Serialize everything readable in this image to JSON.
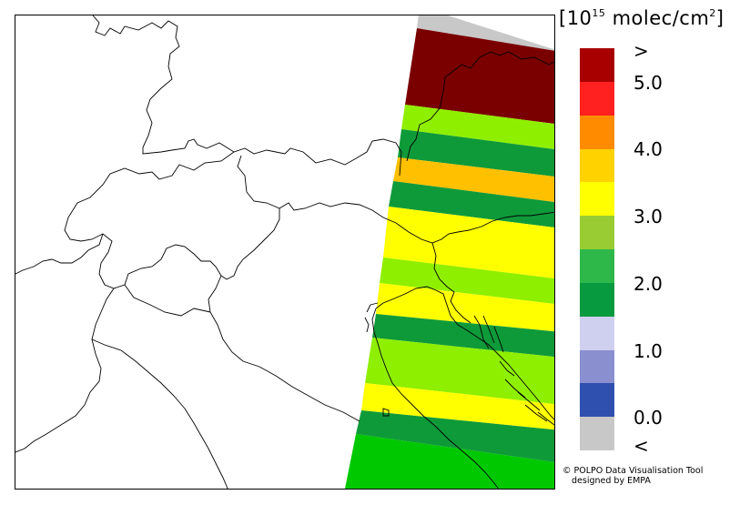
{
  "legend": {
    "title_base": "[10",
    "title_exp": "15",
    "title_units": " molec/cm",
    "title_sq": "2",
    "title_close": "]",
    "ticks": [
      ">",
      "5.0",
      "4.0",
      "3.0",
      "2.0",
      "1.0",
      "0.0",
      "<"
    ],
    "colors": [
      "#a80000",
      "#ff2020",
      "#ff8c00",
      "#ffd200",
      "#ffff00",
      "#99cc33",
      "#2fb84a",
      "#079a3f",
      "#cfcfef",
      "#8a8fd0",
      "#3050b0",
      "#c8c8c8"
    ]
  },
  "map": {
    "swath_colors": {
      "nodata": "#c8c8c8",
      "dark_red": "#7a0000",
      "light_green": "#8fef00",
      "dark_green": "#0f9a3a",
      "orange": "#ffc000",
      "yellow": "#ffff00",
      "bright_green": "#00c800"
    }
  },
  "credit": {
    "line1": "© POLPO Data Visualisation Tool",
    "line2": "designed by EMPA"
  }
}
